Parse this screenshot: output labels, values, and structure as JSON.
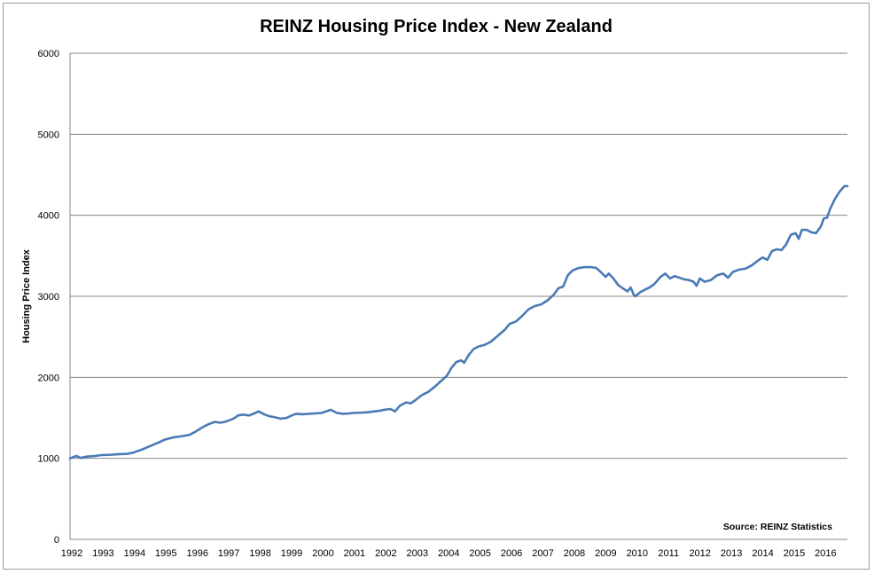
{
  "chart_data": {
    "type": "line",
    "title": "REINZ Housing Price Index - New Zealand",
    "ylabel": "Housing Price Index",
    "xlabel": "",
    "source": "Source: REINZ Statistics",
    "ylim": [
      0,
      6000
    ],
    "yticks": [
      "0",
      "1000",
      "2000",
      "3000",
      "4000",
      "5000",
      "6000"
    ],
    "xlim": [
      1992,
      2016.75
    ],
    "xticks": [
      "1992",
      "1993",
      "1994",
      "1995",
      "1996",
      "1997",
      "1998",
      "1999",
      "2000",
      "2001",
      "2002",
      "2003",
      "2004",
      "2005",
      "2006",
      "2007",
      "2008",
      "2009",
      "2010",
      "2011",
      "2012",
      "2013",
      "2014",
      "2015",
      "2016"
    ],
    "grid": "horizontal",
    "series": [
      {
        "color": "#4a7ab5",
        "points": [
          [
            1992.0,
            1000
          ],
          [
            1992.2,
            1030
          ],
          [
            1992.35,
            1005
          ],
          [
            1992.5,
            1020
          ],
          [
            1992.8,
            1030
          ],
          [
            1993.0,
            1040
          ],
          [
            1993.3,
            1045
          ],
          [
            1993.5,
            1050
          ],
          [
            1993.8,
            1055
          ],
          [
            1994.0,
            1070
          ],
          [
            1994.3,
            1110
          ],
          [
            1994.6,
            1160
          ],
          [
            1994.9,
            1210
          ],
          [
            1995.0,
            1230
          ],
          [
            1995.3,
            1260
          ],
          [
            1995.5,
            1270
          ],
          [
            1995.8,
            1290
          ],
          [
            1996.0,
            1330
          ],
          [
            1996.2,
            1380
          ],
          [
            1996.4,
            1420
          ],
          [
            1996.6,
            1450
          ],
          [
            1996.8,
            1440
          ],
          [
            1997.0,
            1460
          ],
          [
            1997.2,
            1490
          ],
          [
            1997.35,
            1530
          ],
          [
            1997.5,
            1540
          ],
          [
            1997.7,
            1530
          ],
          [
            1997.9,
            1560
          ],
          [
            1998.0,
            1580
          ],
          [
            1998.2,
            1540
          ],
          [
            1998.35,
            1520
          ],
          [
            1998.5,
            1510
          ],
          [
            1998.7,
            1490
          ],
          [
            1998.9,
            1500
          ],
          [
            1999.0,
            1520
          ],
          [
            1999.2,
            1550
          ],
          [
            1999.4,
            1545
          ],
          [
            1999.6,
            1550
          ],
          [
            1999.8,
            1555
          ],
          [
            2000.0,
            1560
          ],
          [
            2000.2,
            1585
          ],
          [
            2000.3,
            1600
          ],
          [
            2000.5,
            1560
          ],
          [
            2000.7,
            1550
          ],
          [
            2000.9,
            1555
          ],
          [
            2001.0,
            1560
          ],
          [
            2001.3,
            1565
          ],
          [
            2001.5,
            1570
          ],
          [
            2001.7,
            1580
          ],
          [
            2001.9,
            1590
          ],
          [
            2002.0,
            1600
          ],
          [
            2002.2,
            1610
          ],
          [
            2002.35,
            1580
          ],
          [
            2002.5,
            1650
          ],
          [
            2002.7,
            1690
          ],
          [
            2002.85,
            1680
          ],
          [
            2003.0,
            1720
          ],
          [
            2003.2,
            1780
          ],
          [
            2003.4,
            1820
          ],
          [
            2003.6,
            1880
          ],
          [
            2003.8,
            1950
          ],
          [
            2004.0,
            2020
          ],
          [
            2004.15,
            2120
          ],
          [
            2004.3,
            2190
          ],
          [
            2004.45,
            2210
          ],
          [
            2004.55,
            2180
          ],
          [
            2004.7,
            2280
          ],
          [
            2004.85,
            2350
          ],
          [
            2005.0,
            2380
          ],
          [
            2005.2,
            2400
          ],
          [
            2005.4,
            2440
          ],
          [
            2005.55,
            2490
          ],
          [
            2005.7,
            2540
          ],
          [
            2005.85,
            2590
          ],
          [
            2005.95,
            2640
          ],
          [
            2006.0,
            2660
          ],
          [
            2006.2,
            2690
          ],
          [
            2006.4,
            2760
          ],
          [
            2006.6,
            2840
          ],
          [
            2006.8,
            2880
          ],
          [
            2007.0,
            2900
          ],
          [
            2007.2,
            2950
          ],
          [
            2007.4,
            3020
          ],
          [
            2007.55,
            3100
          ],
          [
            2007.7,
            3120
          ],
          [
            2007.85,
            3260
          ],
          [
            2008.0,
            3320
          ],
          [
            2008.2,
            3350
          ],
          [
            2008.4,
            3360
          ],
          [
            2008.6,
            3360
          ],
          [
            2008.75,
            3350
          ],
          [
            2008.9,
            3300
          ],
          [
            2009.05,
            3240
          ],
          [
            2009.15,
            3280
          ],
          [
            2009.3,
            3220
          ],
          [
            2009.45,
            3140
          ],
          [
            2009.6,
            3100
          ],
          [
            2009.75,
            3060
          ],
          [
            2009.85,
            3110
          ],
          [
            2009.95,
            3020
          ],
          [
            2010.0,
            3000
          ],
          [
            2010.15,
            3050
          ],
          [
            2010.3,
            3080
          ],
          [
            2010.45,
            3110
          ],
          [
            2010.6,
            3150
          ],
          [
            2010.8,
            3240
          ],
          [
            2010.95,
            3280
          ],
          [
            2011.1,
            3220
          ],
          [
            2011.25,
            3250
          ],
          [
            2011.4,
            3230
          ],
          [
            2011.55,
            3210
          ],
          [
            2011.7,
            3200
          ],
          [
            2011.85,
            3180
          ],
          [
            2011.95,
            3130
          ],
          [
            2012.05,
            3220
          ],
          [
            2012.2,
            3180
          ],
          [
            2012.4,
            3200
          ],
          [
            2012.6,
            3260
          ],
          [
            2012.8,
            3280
          ],
          [
            2012.95,
            3230
          ],
          [
            2013.1,
            3300
          ],
          [
            2013.3,
            3330
          ],
          [
            2013.5,
            3340
          ],
          [
            2013.7,
            3380
          ],
          [
            2013.9,
            3440
          ],
          [
            2014.05,
            3480
          ],
          [
            2014.2,
            3450
          ],
          [
            2014.35,
            3560
          ],
          [
            2014.5,
            3580
          ],
          [
            2014.65,
            3570
          ],
          [
            2014.8,
            3640
          ],
          [
            2014.95,
            3760
          ],
          [
            2015.1,
            3780
          ],
          [
            2015.2,
            3710
          ],
          [
            2015.3,
            3820
          ],
          [
            2015.45,
            3820
          ],
          [
            2015.6,
            3790
          ],
          [
            2015.75,
            3780
          ],
          [
            2015.9,
            3860
          ],
          [
            2016.0,
            3960
          ],
          [
            2016.1,
            3970
          ],
          [
            2016.2,
            4080
          ],
          [
            2016.35,
            4200
          ],
          [
            2016.5,
            4290
          ],
          [
            2016.65,
            4360
          ],
          [
            2016.75,
            4360
          ]
        ]
      }
    ]
  }
}
